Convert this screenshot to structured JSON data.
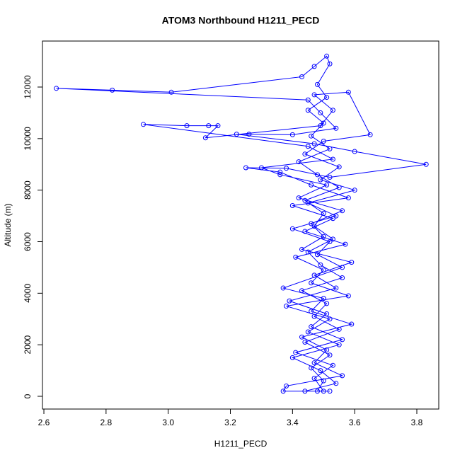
{
  "chart_data": {
    "type": "line",
    "title": "ATOM3 Northbound H1211_PECD",
    "x_label": "H1211_PECD",
    "y_label": "Altitude (m)",
    "color": "#0000ff",
    "marker": "circle",
    "xlim": [
      2.5954,
      3.8706
    ],
    "ylim": [
      -494,
      13785
    ],
    "xticks": [
      2.6,
      2.8,
      {
        "value": 3,
        "label": "3.0"
      },
      3.2,
      3.4,
      3.6,
      3.8
    ],
    "yticks": [
      0,
      2000,
      4000,
      6000,
      8000,
      10000,
      12000
    ],
    "x": [
      3.48,
      3.5,
      3.46,
      3.52,
      3.44,
      3.55,
      3.47,
      3.51,
      3.43,
      3.56,
      3.49,
      3.45,
      3.53,
      3.47,
      3.5,
      3.44,
      3.55,
      3.48,
      3.42,
      3.52,
      3.46,
      3.5,
      3.45,
      3.51,
      3.48,
      3.52,
      3.51,
      3.47,
      3.43,
      3.01,
      2.82,
      2.64,
      3.45,
      3.49,
      3.54,
      3.4,
      3.26,
      3.22,
      3.47,
      3.6,
      3.83,
      3.52,
      3.38,
      3.25,
      3.36,
      3.46,
      3.58,
      3.4,
      3.53,
      3.44,
      3.57,
      3.41,
      3.5,
      3.46,
      3.58,
      3.38,
      3.52,
      3.45,
      3.55,
      3.4,
      3.49,
      3.54,
      3.44,
      3.5,
      3.47,
      3.53,
      3.41,
      3.56,
      3.46,
      3.51,
      3.39,
      3.54,
      3.47,
      3.59,
      3.43,
      3.5,
      3.46,
      3.56,
      3.42,
      3.51,
      3.36,
      3.3,
      3.53,
      3.45,
      2.92,
      3.06,
      3.13,
      3.16,
      3.12,
      3.49,
      3.53,
      3.47,
      3.58,
      3.65,
      3.5,
      3.44,
      3.55,
      3.49,
      3.6,
      3.45,
      3.54,
      3.4,
      3.52,
      3.48,
      3.56,
      3.37,
      3.5,
      3.46,
      3.59,
      3.43,
      3.51,
      3.47,
      3.56,
      3.38,
      3.37,
      3.52
    ],
    "values": [
      200,
      600,
      1100,
      1600,
      2100,
      2600,
      3100,
      3600,
      4100,
      4600,
      5100,
      5600,
      6100,
      6600,
      7100,
      7600,
      8100,
      8600,
      9100,
      9600,
      10100,
      10600,
      11100,
      11600,
      12100,
      12900,
      13200,
      12800,
      12400,
      11800,
      11880,
      11950,
      11500,
      11000,
      10400,
      10150,
      10170,
      10170,
      9800,
      9500,
      9000,
      8500,
      8850,
      8870,
      8700,
      8200,
      7700,
      7400,
      6900,
      6400,
      5900,
      5400,
      4900,
      4400,
      3900,
      3500,
      3000,
      2500,
      2000,
      1500,
      1000,
      500,
      200,
      200,
      700,
      1200,
      1700,
      2200,
      2700,
      3200,
      3700,
      4200,
      4700,
      5200,
      5700,
      6200,
      6700,
      7200,
      7700,
      8200,
      8600,
      8870,
      9200,
      9700,
      10550,
      10500,
      10500,
      10500,
      10030,
      10500,
      11100,
      11700,
      11800,
      10150,
      9900,
      9400,
      8900,
      8400,
      8000,
      7500,
      7000,
      6500,
      6000,
      5500,
      5000,
      4200,
      3800,
      3300,
      2800,
      2300,
      1800,
      1300,
      800,
      400,
      200,
      200
    ]
  }
}
